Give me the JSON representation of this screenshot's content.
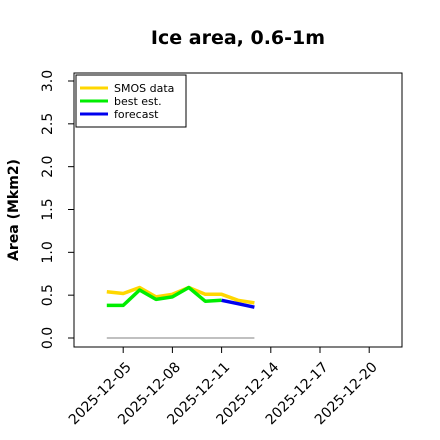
{
  "chart_data": {
    "type": "line",
    "title": "Ice area, 0.6-1m",
    "xlabel": "",
    "ylabel": "Area (Mkm2)",
    "ylim": [
      0.0,
      3.0
    ],
    "xlim": [
      "2025-12-02",
      "2025-12-22"
    ],
    "yticks": [
      "0.0",
      "0.5",
      "1.0",
      "1.5",
      "2.0",
      "2.5",
      "3.0"
    ],
    "xticks": [
      {
        "label": "2025-12-05",
        "color": "#000000"
      },
      {
        "label": "2025-12-08",
        "color": "#000000"
      },
      {
        "label": "2025-12-11",
        "color": "#228B22"
      },
      {
        "label": "2025-12-14",
        "color": "#000000"
      },
      {
        "label": "2025-12-17",
        "color": "#000000"
      },
      {
        "label": "2025-12-20",
        "color": "#000000"
      }
    ],
    "grid": false,
    "legend_position": "top-left",
    "series": [
      {
        "name": "SMOS data",
        "color": "#FFD700",
        "x": [
          "2025-12-04",
          "2025-12-05",
          "2025-12-06",
          "2025-12-07",
          "2025-12-08",
          "2025-12-09",
          "2025-12-10",
          "2025-12-11",
          "2025-12-12",
          "2025-12-13"
        ],
        "values": [
          0.54,
          0.52,
          0.59,
          0.48,
          0.51,
          0.59,
          0.51,
          0.51,
          0.44,
          0.41
        ]
      },
      {
        "name": "best est.",
        "color": "#00EE00",
        "x": [
          "2025-12-04",
          "2025-12-05",
          "2025-12-06",
          "2025-12-07",
          "2025-12-08",
          "2025-12-09",
          "2025-12-10",
          "2025-12-11"
        ],
        "values": [
          0.38,
          0.38,
          0.56,
          0.45,
          0.48,
          0.59,
          0.43,
          0.44
        ]
      },
      {
        "name": "forecast",
        "color": "#0000EE",
        "x": [
          "2025-12-11",
          "2025-12-12",
          "2025-12-13"
        ],
        "values": [
          0.44,
          0.4,
          0.36
        ]
      },
      {
        "color": "#808080",
        "x": [
          "2025-12-04",
          "2025-12-13"
        ],
        "values": [
          0.0,
          0.0
        ]
      }
    ]
  }
}
